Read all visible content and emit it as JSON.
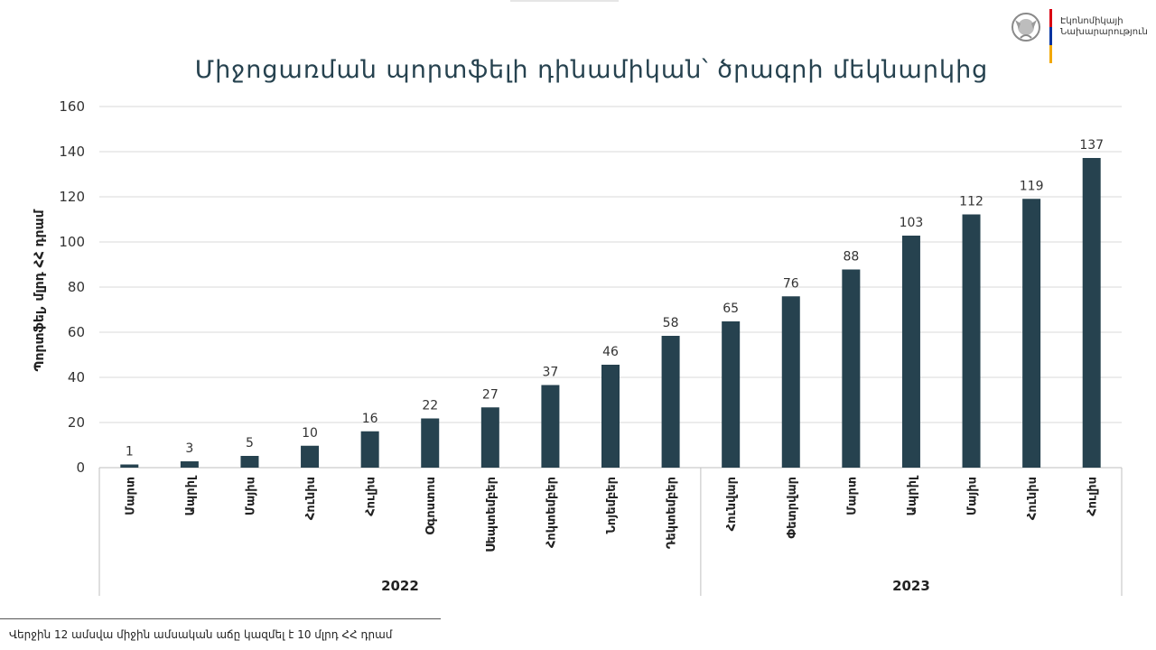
{
  "header": {
    "ministry_line1": "Էկոնոմիկայի",
    "ministry_line2": "Նախարարություն",
    "flag_colors": [
      "#d90012",
      "#0033a0",
      "#f2a800"
    ]
  },
  "footnote": "Վերջին 12 ամսվա միջին ամսական աճը կազմել է 10 մլրդ ՀՀ դրամ",
  "chart_data": {
    "type": "bar",
    "title": "Միջոցառման պորտֆելի դինամիկան՝ ծրագրի մեկնարկից",
    "xlabel": "",
    "ylabel": "Պորտֆել, մլրդ ՀՀ դրամ",
    "ylim": [
      0,
      160
    ],
    "yticks": [
      0,
      20,
      40,
      60,
      80,
      100,
      120,
      140,
      160
    ],
    "grid": true,
    "bar_color": "#26424f",
    "categories": [
      "Մարտ",
      "Ապրիլ",
      "Մայիս",
      "Հունիս",
      "Հուլիս",
      "Օգոստոս",
      "Սեպտեմբեր",
      "Հոկտեմբեր",
      "Նոյեմբեր",
      "Դեկտեմբեր",
      "Հունվար",
      "Փետրվար",
      "Մարտ",
      "Ապրիլ",
      "Մայիս",
      "Հունիս",
      "Հուլիս"
    ],
    "values": [
      1,
      3,
      5,
      10,
      16,
      22,
      27,
      37,
      46,
      58,
      65,
      76,
      88,
      103,
      112,
      119,
      137
    ],
    "exact_values": [
      1.4,
      2.8,
      5.2,
      9.7,
      16.1,
      21.8,
      26.7,
      36.6,
      45.6,
      58.4,
      64.8,
      75.9,
      87.8,
      102.8,
      112.2,
      119.1,
      137.2
    ],
    "groups": [
      {
        "label": "2022",
        "count": 10
      },
      {
        "label": "2023",
        "count": 7
      }
    ]
  }
}
